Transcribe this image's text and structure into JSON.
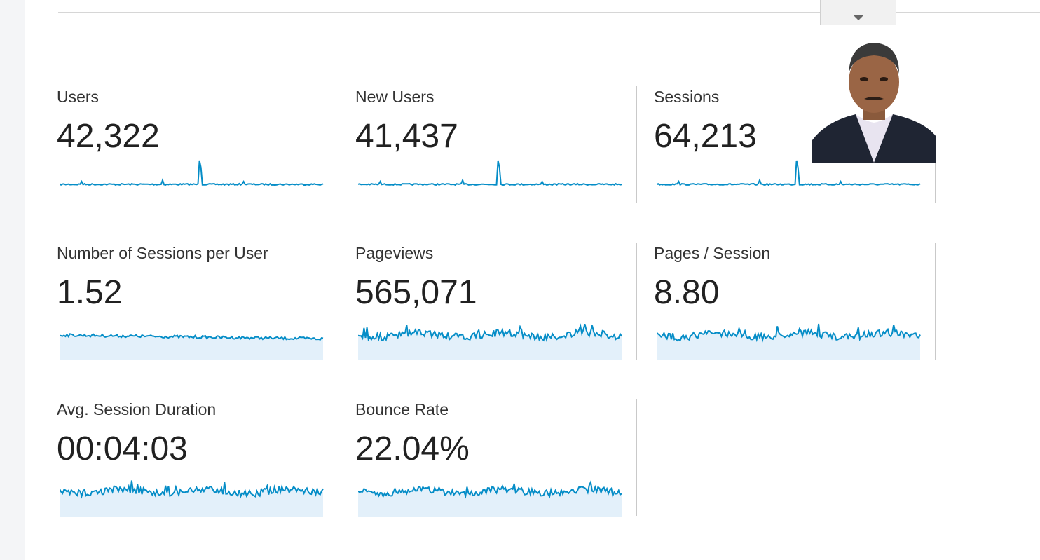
{
  "metrics": [
    {
      "label": "Users",
      "value": "42,322"
    },
    {
      "label": "New Users",
      "value": "41,437"
    },
    {
      "label": "Sessions",
      "value": "64,213"
    },
    {
      "label": "Number of Sessions per User",
      "value": "1.52"
    },
    {
      "label": "Pageviews",
      "value": "565,071"
    },
    {
      "label": "Pages / Session",
      "value": "8.80"
    },
    {
      "label": "Avg. Session Duration",
      "value": "00:04:03"
    },
    {
      "label": "Bounce Rate",
      "value": "22.04%"
    }
  ]
}
